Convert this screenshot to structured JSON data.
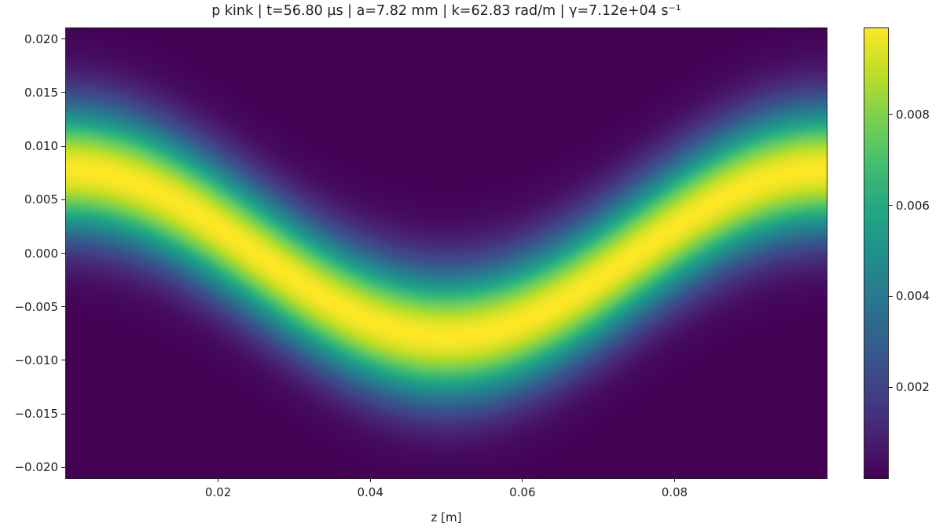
{
  "chart_data": {
    "type": "heatmap",
    "title": "p kink | t=56.80 µs | a=7.82 mm | k=62.83 rad/m | γ=7.12e+04 s⁻¹",
    "xlabel": "z [m]",
    "ylabel": "",
    "xlim": [
      0.0,
      0.1
    ],
    "ylim": [
      -0.021,
      0.021
    ],
    "x_ticks": [
      "0.02",
      "0.04",
      "0.06",
      "0.08"
    ],
    "x_tick_values": [
      0.02,
      0.04,
      0.06,
      0.08
    ],
    "y_ticks": [
      "0.020",
      "0.015",
      "0.010",
      "0.005",
      "0.000",
      "−0.005",
      "−0.010",
      "−0.015",
      "−0.020"
    ],
    "y_tick_values": [
      0.02,
      0.015,
      0.01,
      0.005,
      0.0,
      -0.005,
      -0.01,
      -0.015,
      -0.02
    ],
    "colormap": "viridis",
    "color_range": [
      0.0,
      0.0099
    ],
    "colorbar_ticks": [
      "0.008",
      "0.006",
      "0.004",
      "0.002"
    ],
    "colorbar_tick_values": [
      0.008,
      0.006,
      0.004,
      0.002
    ],
    "ridge": {
      "z": [
        0.0,
        0.01,
        0.02,
        0.03,
        0.04,
        0.05,
        0.06,
        0.07,
        0.08,
        0.09,
        0.1
      ],
      "center_y": [
        0.0078,
        0.0063,
        0.0024,
        -0.0024,
        -0.0063,
        -0.0078,
        -0.0063,
        -0.0024,
        0.0024,
        0.0063,
        0.0078
      ],
      "peak_value": 0.0099,
      "width_sigma": 0.0042
    },
    "grid": false
  }
}
